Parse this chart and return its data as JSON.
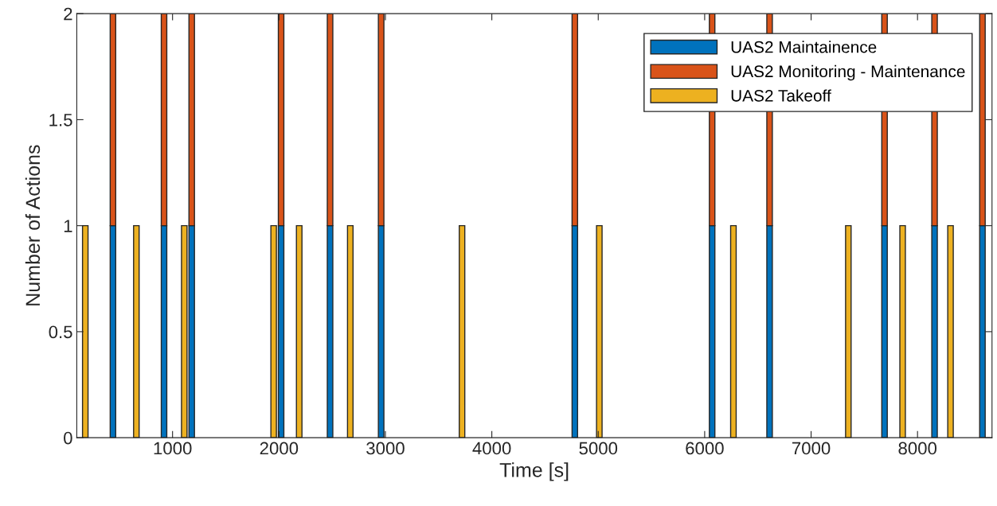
{
  "chart_data": {
    "type": "bar",
    "stacked": true,
    "xlabel": "Time [s]",
    "ylabel": "Number of Actions",
    "x": [
      180,
      440,
      660,
      920,
      1110,
      1180,
      1950,
      2020,
      2190,
      2480,
      2670,
      2960,
      3720,
      4780,
      5010,
      6070,
      6270,
      6610,
      7350,
      7690,
      7860,
      8160,
      8310,
      8610
    ],
    "series": [
      {
        "name": "UAS2 Maintainence",
        "color": "#0072bd",
        "values": [
          null,
          1,
          null,
          1,
          null,
          1,
          null,
          1,
          null,
          1,
          null,
          1,
          null,
          1,
          null,
          1,
          null,
          1,
          null,
          1,
          null,
          1,
          null,
          1
        ]
      },
      {
        "name": "UAS2 Monitoring - Maintenance",
        "color": "#d95319",
        "values": [
          null,
          1,
          null,
          1,
          null,
          1,
          null,
          1,
          null,
          1,
          null,
          1,
          null,
          1,
          null,
          1,
          null,
          1,
          null,
          1,
          null,
          1,
          null,
          1
        ]
      },
      {
        "name": "UAS2 Takeoff",
        "color": "#edb120",
        "values": [
          1,
          null,
          1,
          null,
          1,
          null,
          1,
          null,
          1,
          null,
          1,
          null,
          1,
          null,
          1,
          null,
          1,
          null,
          1,
          null,
          1,
          null,
          1,
          null
        ]
      }
    ],
    "xlim": [
      100,
      8700
    ],
    "xticks": [
      1000,
      2000,
      3000,
      4000,
      5000,
      6000,
      7000,
      8000
    ],
    "ylim": [
      0,
      2
    ],
    "yticks": [
      0,
      0.5,
      1,
      1.5,
      2
    ],
    "grid": false,
    "legend": "top right"
  }
}
